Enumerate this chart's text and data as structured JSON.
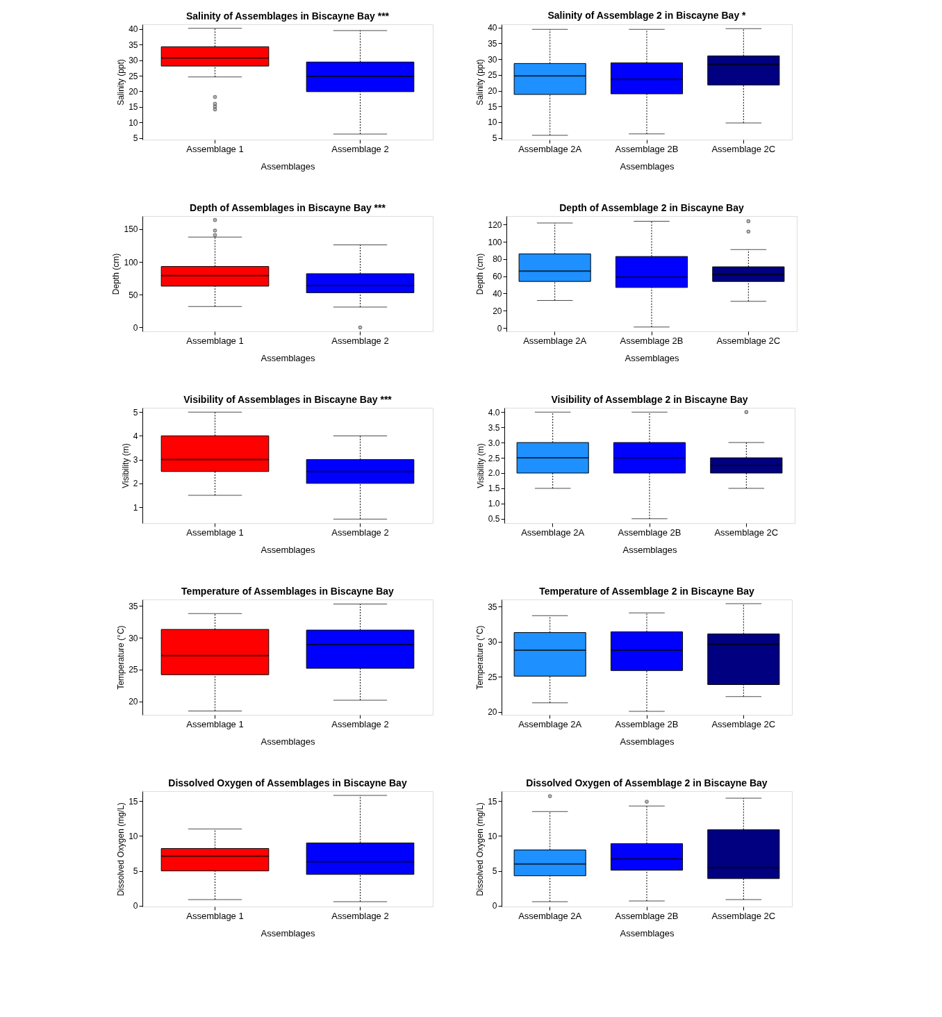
{
  "chart_data": [
    {
      "type": "box",
      "title": "Salinity of Assemblages in Biscayne Bay ***",
      "xlabel": "Assemblages",
      "ylabel": "Salinity (ppt)",
      "categories": [
        "Assemblage 1",
        "Assemblage 2"
      ],
      "colors": [
        "#ff0000",
        "#0000ff"
      ],
      "ylim": [
        4.5,
        41.5
      ],
      "yticks": [
        5,
        10,
        15,
        20,
        25,
        30,
        35,
        40
      ],
      "grid": false,
      "boxes": [
        {
          "low": 24.6,
          "q1": 28.1,
          "median": 30.7,
          "q3": 34.3,
          "high": 40.2,
          "outliers": [
            18.2,
            16.0,
            15.1,
            14.2
          ]
        },
        {
          "low": 6.3,
          "q1": 19.9,
          "median": 24.8,
          "q3": 29.4,
          "high": 39.5
        }
      ]
    },
    {
      "type": "box",
      "title": "Salinity of Assemblage 2 in Biscayne Bay *",
      "xlabel": "Assemblages",
      "ylabel": "Salinity (ppt)",
      "categories": [
        "Assemblage 2A",
        "Assemblage 2B",
        "Assemblage 2C"
      ],
      "colors": [
        "#1e90ff",
        "#0000ff",
        "#000080"
      ],
      "ylim": [
        4.5,
        41
      ],
      "yticks": [
        5,
        10,
        15,
        20,
        25,
        30,
        35,
        40
      ],
      "grid": false,
      "boxes": [
        {
          "low": 5.9,
          "q1": 18.8,
          "median": 24.7,
          "q3": 28.6,
          "high": 39.4
        },
        {
          "low": 6.3,
          "q1": 19.0,
          "median": 23.6,
          "q3": 28.8,
          "high": 39.4
        },
        {
          "low": 9.8,
          "q1": 21.8,
          "median": 28.3,
          "q3": 31.0,
          "high": 39.6
        }
      ]
    },
    {
      "type": "box",
      "title": "Depth of Assemblages in Biscayne Bay ***",
      "xlabel": "Assemblages",
      "ylabel": "Depth (cm)",
      "categories": [
        "Assemblage 1",
        "Assemblage 2"
      ],
      "colors": [
        "#ff0000",
        "#0000ff"
      ],
      "ylim": [
        -6,
        170
      ],
      "yticks": [
        0,
        50,
        100,
        150
      ],
      "grid": false,
      "boxes": [
        {
          "low": 32,
          "q1": 63,
          "median": 79,
          "q3": 93,
          "high": 138,
          "outliers": [
            164,
            148,
            141
          ]
        },
        {
          "low": 31,
          "q1": 53,
          "median": 64,
          "q3": 82,
          "high": 126,
          "outliers": [
            0
          ]
        }
      ]
    },
    {
      "type": "box",
      "title": "Depth of Assemblage 2 in Biscayne Bay",
      "xlabel": "Assemblages",
      "ylabel": "Depth (cm)",
      "categories": [
        "Assemblage 2A",
        "Assemblage 2B",
        "Assemblage 2C"
      ],
      "colors": [
        "#1e90ff",
        "#0000ff",
        "#000080"
      ],
      "ylim": [
        -4,
        130
      ],
      "yticks": [
        0,
        20,
        40,
        60,
        80,
        100,
        120
      ],
      "grid": false,
      "boxes": [
        {
          "low": 32,
          "q1": 54,
          "median": 66,
          "q3": 86,
          "high": 122
        },
        {
          "low": 1,
          "q1": 47,
          "median": 59,
          "q3": 83,
          "high": 124
        },
        {
          "low": 31,
          "q1": 54,
          "median": 62,
          "q3": 71,
          "high": 91,
          "outliers": [
            124,
            112
          ]
        }
      ]
    },
    {
      "type": "box",
      "title": "Visibility of Assemblages in Biscayne Bay ***",
      "xlabel": "Assemblages",
      "ylabel": "Visibility (m)",
      "categories": [
        "Assemblage 1",
        "Assemblage 2"
      ],
      "colors": [
        "#ff0000",
        "#0000ff"
      ],
      "ylim": [
        0.33,
        5.18
      ],
      "yticks": [
        1,
        2,
        3,
        4,
        5
      ],
      "grid": false,
      "boxes": [
        {
          "low": 1.5,
          "q1": 2.5,
          "median": 3,
          "q3": 4,
          "high": 5
        },
        {
          "low": 0.5,
          "q1": 2,
          "median": 2.5,
          "q3": 3,
          "high": 4
        }
      ]
    },
    {
      "type": "box",
      "title": "Visibility of Assemblage 2 in Biscayne Bay",
      "xlabel": "Assemblages",
      "ylabel": "Visibility (m)",
      "categories": [
        "Assemblage 2A",
        "Assemblage 2B",
        "Assemblage 2C"
      ],
      "colors": [
        "#1e90ff",
        "#0000ff",
        "#000080"
      ],
      "ylim": [
        0.36,
        4.14
      ],
      "yticks": [
        {
          "value": 0.5,
          "label": "0.5"
        },
        {
          "value": 1,
          "label": "1.0"
        },
        {
          "value": 1.5,
          "label": "1.5"
        },
        {
          "value": 2,
          "label": "2.0"
        },
        {
          "value": 2.5,
          "label": "2.5"
        },
        {
          "value": 3,
          "label": "3.0"
        },
        {
          "value": 3.5,
          "label": "3.5"
        },
        {
          "value": 4,
          "label": "4.0"
        }
      ],
      "grid": false,
      "boxes": [
        {
          "low": 1.5,
          "q1": 2,
          "median": 2.5,
          "q3": 3,
          "high": 4
        },
        {
          "low": 0.5,
          "q1": 2,
          "median": 2.5,
          "q3": 3,
          "high": 4
        },
        {
          "low": 1.5,
          "q1": 2,
          "median": 2.25,
          "q3": 2.5,
          "high": 3,
          "outliers": [
            4
          ]
        }
      ]
    },
    {
      "type": "box",
      "title": "Temperature of Assemblages in Biscayne Bay",
      "xlabel": "Assemblages",
      "ylabel": "Temperature (°C)",
      "categories": [
        "Assemblage 1",
        "Assemblage 2"
      ],
      "colors": [
        "#ff0000",
        "#0000ff"
      ],
      "ylim": [
        17.9,
        36
      ],
      "yticks": [
        20,
        25,
        30,
        35
      ],
      "grid": false,
      "boxes": [
        {
          "low": 18.5,
          "q1": 24.2,
          "median": 27.2,
          "q3": 31.3,
          "high": 33.8
        },
        {
          "low": 20.2,
          "q1": 25.2,
          "median": 28.9,
          "q3": 31.2,
          "high": 35.3
        }
      ]
    },
    {
      "type": "box",
      "title": "Temperature of Assemblage 2 in Biscayne Bay",
      "xlabel": "Assemblages",
      "ylabel": "Temperature (°C)",
      "categories": [
        "Assemblage 2A",
        "Assemblage 2B",
        "Assemblage 2C"
      ],
      "colors": [
        "#1e90ff",
        "#0000ff",
        "#000080"
      ],
      "ylim": [
        19.6,
        36
      ],
      "yticks": [
        20,
        25,
        30,
        35
      ],
      "grid": false,
      "boxes": [
        {
          "low": 21.3,
          "q1": 25.1,
          "median": 28.8,
          "q3": 31.3,
          "high": 33.7
        },
        {
          "low": 20.1,
          "q1": 25.9,
          "median": 28.8,
          "q3": 31.4,
          "high": 34.1
        },
        {
          "low": 22.2,
          "q1": 23.9,
          "median": 29.6,
          "q3": 31.1,
          "high": 35.4
        }
      ]
    },
    {
      "type": "box",
      "title": "Dissolved Oxygen of Assemblages in Biscayne Bay",
      "xlabel": "Assemblages",
      "ylabel": "Dissolved Oxygen (mg/L)",
      "categories": [
        "Assemblage 1",
        "Assemblage 2"
      ],
      "colors": [
        "#ff0000",
        "#0000ff"
      ],
      "ylim": [
        -0.1,
        16.4
      ],
      "yticks": [
        0,
        5,
        10,
        15
      ],
      "grid": false,
      "boxes": [
        {
          "low": 0.9,
          "q1": 5,
          "median": 7.1,
          "q3": 8.2,
          "high": 11
        },
        {
          "low": 0.6,
          "q1": 4.5,
          "median": 6.3,
          "q3": 9.0,
          "high": 15.8
        }
      ]
    },
    {
      "type": "box",
      "title": "Dissolved Oxygen of Assemblage 2 in Biscayne Bay",
      "xlabel": "Assemblages",
      "ylabel": "Dissolved Oxygen (mg/L)",
      "categories": [
        "Assemblage 2A",
        "Assemblage 2B",
        "Assemblage 2C"
      ],
      "colors": [
        "#1e90ff",
        "#0000ff",
        "#000080"
      ],
      "ylim": [
        -0.1,
        16.4
      ],
      "yticks": [
        0,
        5,
        10,
        15
      ],
      "grid": false,
      "boxes": [
        {
          "low": 0.6,
          "q1": 4.3,
          "median": 6.0,
          "q3": 8.0,
          "high": 13.5,
          "outliers": [
            15.7
          ]
        },
        {
          "low": 0.7,
          "q1": 5.1,
          "median": 6.7,
          "q3": 8.9,
          "high": 14.3,
          "outliers": [
            14.9
          ]
        },
        {
          "low": 0.9,
          "q1": 3.9,
          "median": 5.5,
          "q3": 10.9,
          "high": 15.4
        }
      ]
    }
  ]
}
